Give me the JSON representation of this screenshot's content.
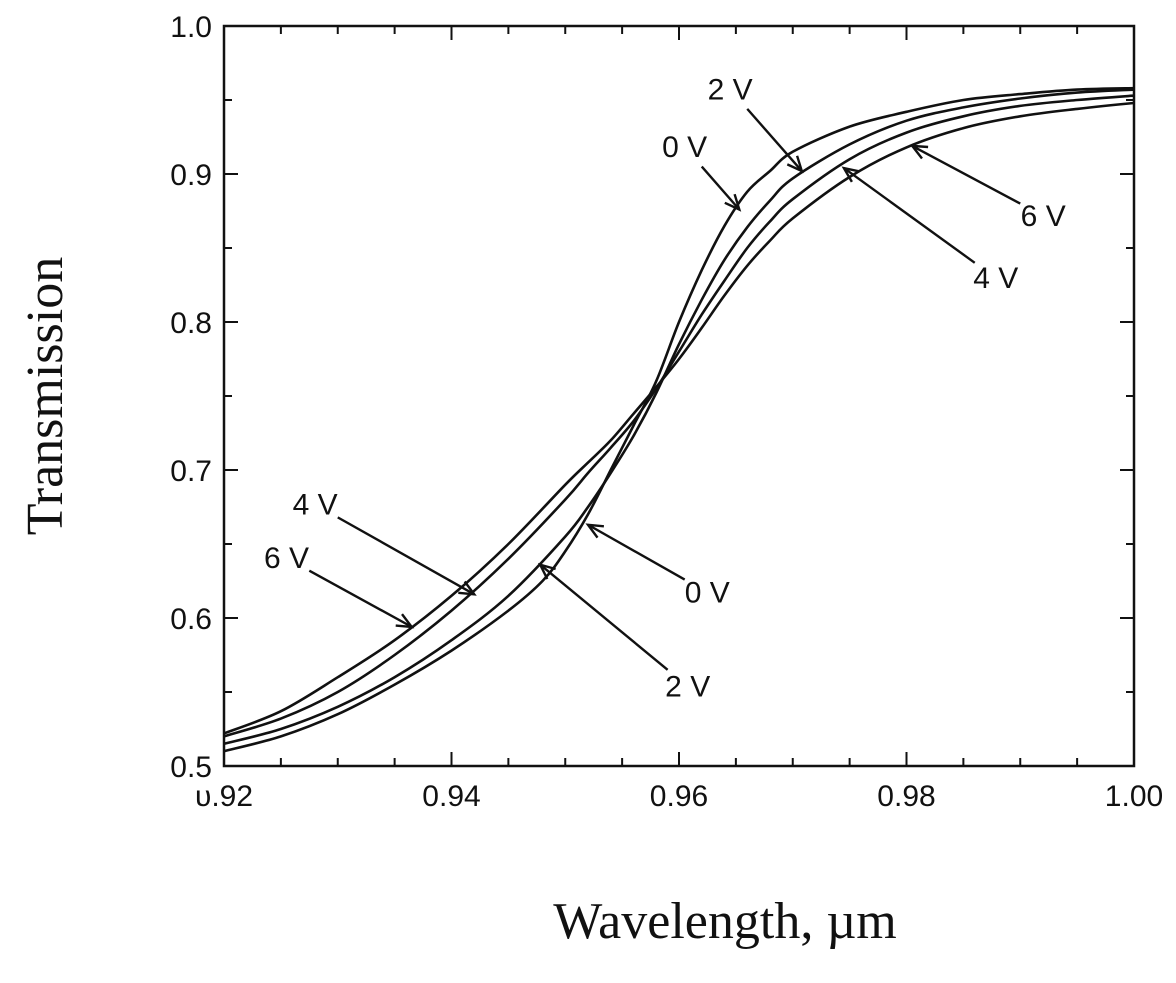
{
  "chart_data": {
    "type": "line",
    "title": "",
    "xlabel": "Wavelength, µm",
    "ylabel": "Transmission",
    "xlim": [
      0.92,
      1.0
    ],
    "ylim": [
      0.5,
      1.0
    ],
    "x_ticks": [
      0.92,
      0.94,
      0.96,
      0.98,
      1.0
    ],
    "x_tick_labels": [
      "υ.92",
      "0.94",
      "0.96",
      "0.98",
      "1.00"
    ],
    "y_ticks": [
      0.5,
      0.6,
      0.7,
      0.8,
      0.9,
      1.0
    ],
    "y_tick_labels": [
      "0.5",
      "0.6",
      "0.7",
      "0.8",
      "0.9",
      "1.0"
    ],
    "grid": false,
    "legend": "none",
    "series_color": "#111111",
    "series": [
      {
        "label_text": "0 V",
        "x": [
          0.92,
          0.925,
          0.93,
          0.935,
          0.94,
          0.945,
          0.948,
          0.95,
          0.952,
          0.954,
          0.956,
          0.958,
          0.96,
          0.962,
          0.964,
          0.966,
          0.968,
          0.97,
          0.975,
          0.98,
          0.985,
          0.99,
          0.995,
          1.0
        ],
        "y": [
          0.51,
          0.52,
          0.535,
          0.555,
          0.578,
          0.605,
          0.625,
          0.645,
          0.67,
          0.7,
          0.73,
          0.76,
          0.8,
          0.835,
          0.865,
          0.888,
          0.902,
          0.915,
          0.932,
          0.942,
          0.95,
          0.954,
          0.957,
          0.958
        ]
      },
      {
        "label_text": "2 V",
        "x": [
          0.92,
          0.925,
          0.93,
          0.935,
          0.94,
          0.945,
          0.95,
          0.952,
          0.954,
          0.956,
          0.958,
          0.96,
          0.962,
          0.964,
          0.966,
          0.968,
          0.97,
          0.975,
          0.98,
          0.985,
          0.99,
          0.995,
          1.0
        ],
        "y": [
          0.515,
          0.525,
          0.54,
          0.56,
          0.585,
          0.615,
          0.655,
          0.675,
          0.698,
          0.723,
          0.752,
          0.785,
          0.815,
          0.842,
          0.864,
          0.882,
          0.897,
          0.92,
          0.936,
          0.945,
          0.951,
          0.955,
          0.957
        ]
      },
      {
        "label_text": "4 V",
        "x": [
          0.92,
          0.925,
          0.93,
          0.935,
          0.94,
          0.945,
          0.95,
          0.952,
          0.954,
          0.956,
          0.958,
          0.96,
          0.962,
          0.964,
          0.966,
          0.968,
          0.97,
          0.975,
          0.98,
          0.985,
          0.99,
          0.995,
          1.0
        ],
        "y": [
          0.52,
          0.532,
          0.55,
          0.575,
          0.605,
          0.64,
          0.68,
          0.698,
          0.715,
          0.733,
          0.755,
          0.78,
          0.805,
          0.828,
          0.85,
          0.868,
          0.883,
          0.91,
          0.928,
          0.939,
          0.946,
          0.95,
          0.953
        ]
      },
      {
        "label_text": "6 V",
        "x": [
          0.92,
          0.925,
          0.93,
          0.935,
          0.94,
          0.945,
          0.95,
          0.952,
          0.954,
          0.956,
          0.958,
          0.96,
          0.962,
          0.964,
          0.966,
          0.968,
          0.97,
          0.975,
          0.98,
          0.985,
          0.99,
          0.995,
          1.0
        ],
        "y": [
          0.522,
          0.537,
          0.56,
          0.585,
          0.615,
          0.65,
          0.69,
          0.705,
          0.72,
          0.738,
          0.756,
          0.775,
          0.796,
          0.818,
          0.838,
          0.855,
          0.87,
          0.898,
          0.918,
          0.931,
          0.939,
          0.944,
          0.948
        ]
      }
    ],
    "annotations": [
      {
        "text": "2 V",
        "tip": [
          0.9708,
          0.902
        ],
        "tail": [
          0.966,
          0.944
        ]
      },
      {
        "text": "0 V",
        "tip": [
          0.9653,
          0.876
        ],
        "tail": [
          0.962,
          0.905
        ]
      },
      {
        "text": "4 V",
        "tip": [
          0.9745,
          0.904
        ],
        "tail": [
          0.986,
          0.84
        ]
      },
      {
        "text": "6 V",
        "tip": [
          0.9805,
          0.919
        ],
        "tail": [
          0.99,
          0.88
        ]
      },
      {
        "text": "4 V",
        "tip": [
          0.942,
          0.616
        ],
        "tail": [
          0.93,
          0.668
        ]
      },
      {
        "text": "6 V",
        "tip": [
          0.9365,
          0.594
        ],
        "tail": [
          0.9275,
          0.632
        ]
      },
      {
        "text": "0 V",
        "tip": [
          0.952,
          0.663
        ],
        "tail": [
          0.9605,
          0.626
        ]
      },
      {
        "text": "2 V",
        "tip": [
          0.9478,
          0.636
        ],
        "tail": [
          0.959,
          0.565
        ]
      }
    ]
  }
}
